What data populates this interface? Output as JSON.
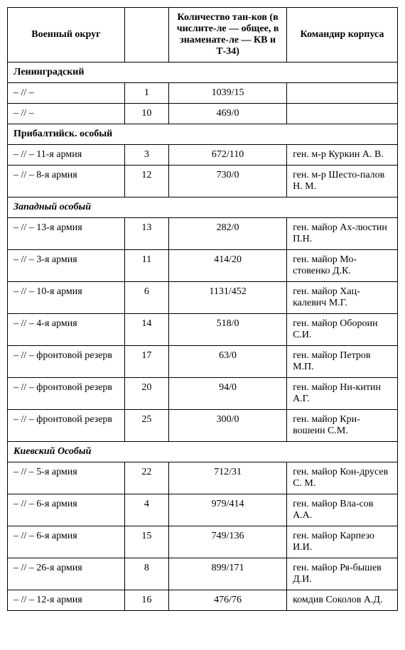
{
  "headers": {
    "col1": "Военный округ",
    "col2": "",
    "col3": "Количество тан-ков (в числите-ле — общее, в знаменате-ле — КВ и Т-34)",
    "col4": "Командир корпуса"
  },
  "sections": [
    {
      "title": "Ленинградский",
      "italic": false,
      "rows": [
        {
          "c1": "– // –",
          "c2": "1",
          "c3": "1039/15",
          "c4": ""
        },
        {
          "c1": "– // –",
          "c2": "10",
          "c3": "469/0",
          "c4": ""
        }
      ]
    },
    {
      "title": "Прибалтийск. особый",
      "italic": false,
      "rows": [
        {
          "c1": "– // – 11-я армия",
          "c2": "3",
          "c3": "672/110",
          "c4": "ген. м-р Куркин А. В."
        },
        {
          "c1": "– // – 8-я армия",
          "c2": "12",
          "c3": "730/0",
          "c4": "ген. м-р Шесто-палов Н. М."
        }
      ]
    },
    {
      "title": "Западный особый",
      "italic": true,
      "rows": [
        {
          "c1": "– // – 13-я армия",
          "c2": "13",
          "c3": "282/0",
          "c4": "ген. майор Ах-люстин П.Н."
        },
        {
          "c1": "– // – 3-я армия",
          "c2": "11",
          "c3": "414/20",
          "c4": "ген. майор Мо-стовенко Д.К."
        },
        {
          "c1": "– // – 10-я армия",
          "c2": "6",
          "c3": "1131/452",
          "c4": "ген. майор Хац-калевич М.Г."
        },
        {
          "c1": "– // – 4-я армия",
          "c2": "14",
          "c3": "518/0",
          "c4": "ген. майор Обороин С.И."
        },
        {
          "c1": "– // – фронтовой резерв",
          "c2": "17",
          "c3": "63/0",
          "c4": "ген. майор Петров М.П."
        },
        {
          "c1": "– // – фронтовой резерв",
          "c2": "20",
          "c3": "94/0",
          "c4": "ген. майор Ни-китин А.Г."
        },
        {
          "c1": "– // – фронтовой резерв",
          "c2": "25",
          "c3": "300/0",
          "c4": "ген. майор Кри-вошеин С.М."
        }
      ]
    },
    {
      "title": "Киевский Особый",
      "italic": true,
      "rows": [
        {
          "c1": "– // – 5-я армия",
          "c2": "22",
          "c3": "712/31",
          "c4": "ген. майор Кон-друсев С. М."
        },
        {
          "c1": "– // – 6-я армия",
          "c2": "4",
          "c3": "979/414",
          "c4": "ген. майор Вла-сов А.А."
        },
        {
          "c1": "– // – 6-я армия",
          "c2": "15",
          "c3": "749/136",
          "c4": "ген. майор Карпезо И.И."
        },
        {
          "c1": "– // – 26-я армия",
          "c2": "8",
          "c3": "899/171",
          "c4": "ген. майор Ря-бышев Д.И."
        },
        {
          "c1": "– // – 12-я армия",
          "c2": "16",
          "c3": "476/76",
          "c4": "комдив Соколов А.Д."
        }
      ]
    }
  ]
}
